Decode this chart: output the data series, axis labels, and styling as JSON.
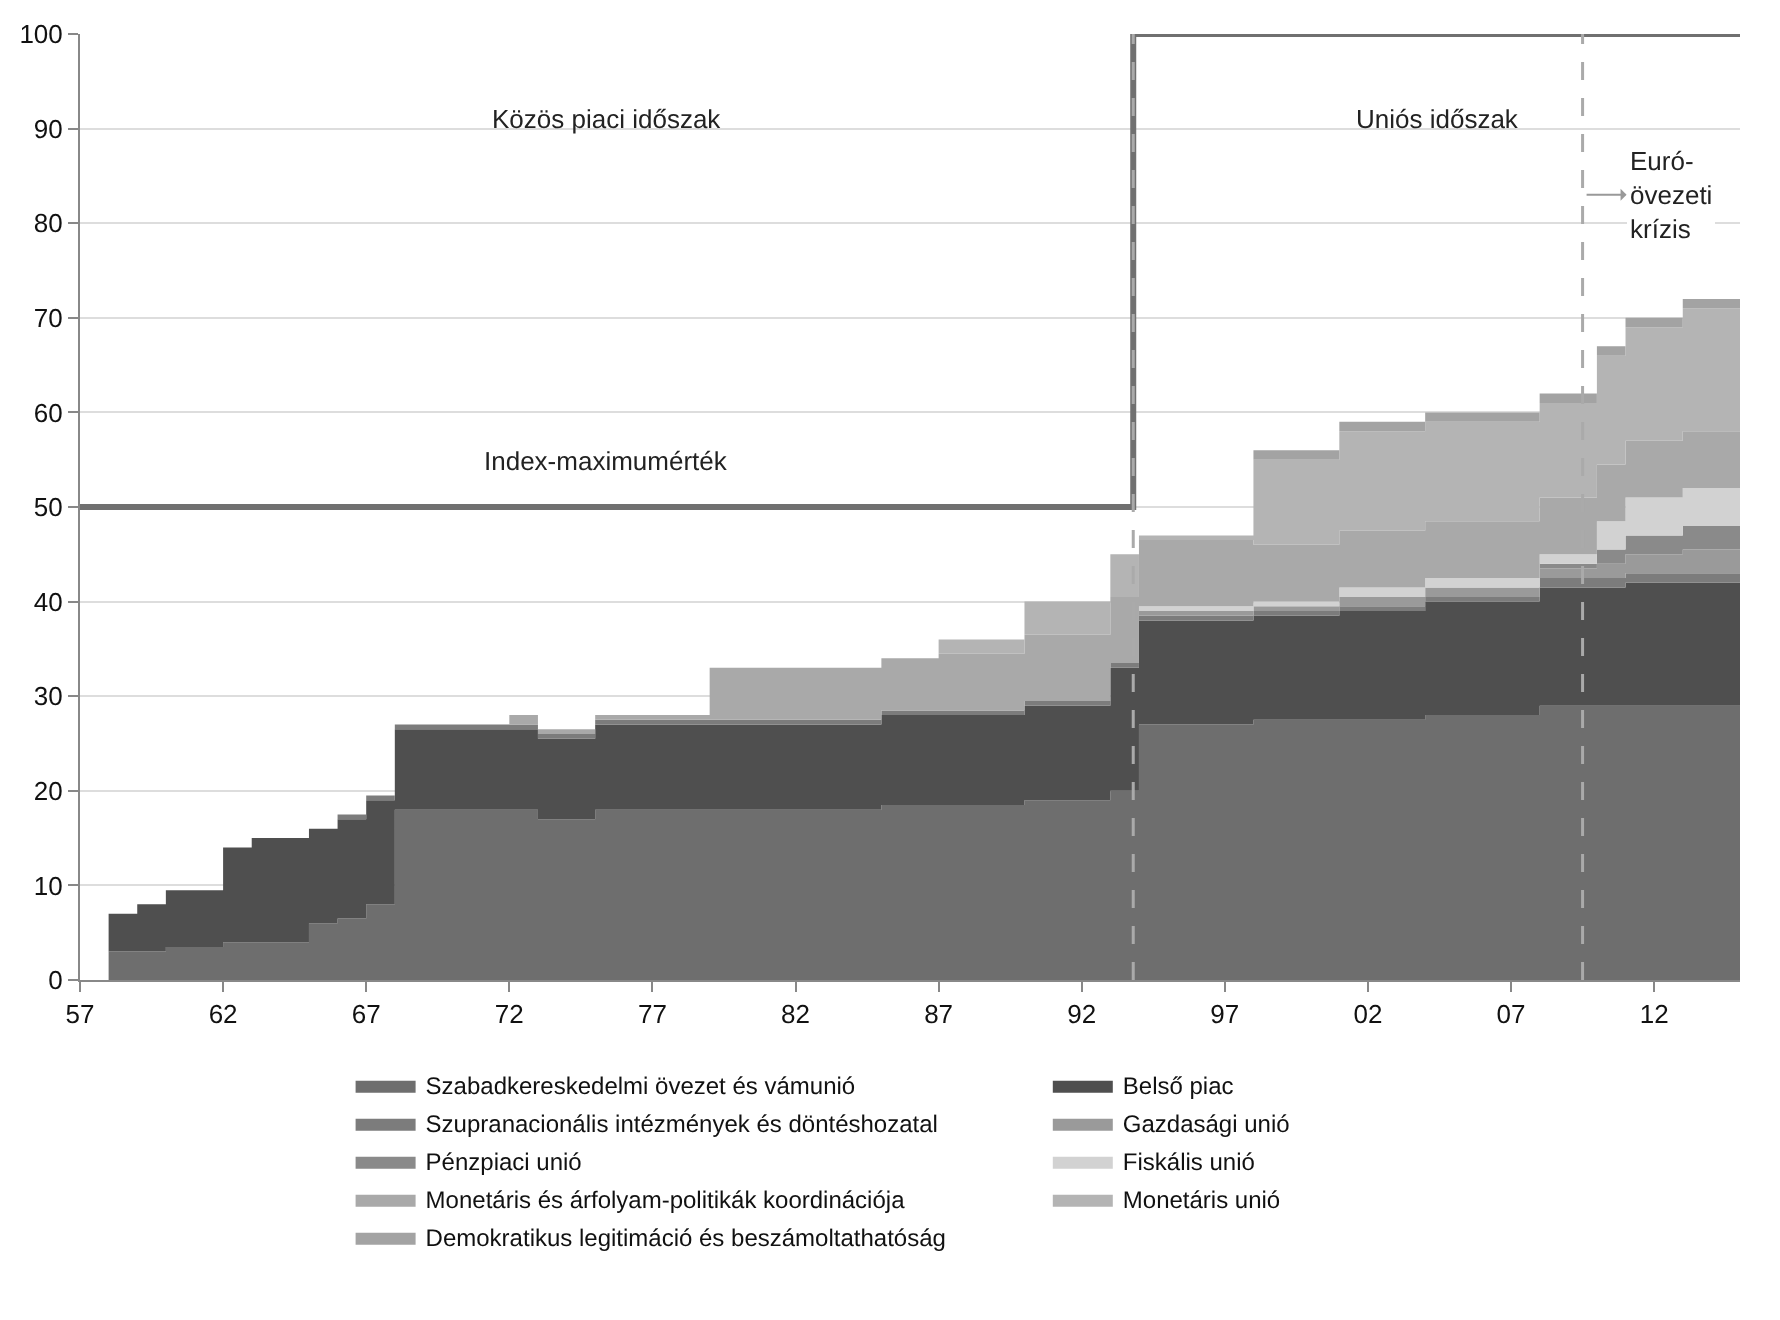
{
  "chart_data": {
    "type": "area",
    "stacked": true,
    "x": [
      1958,
      1959,
      1960,
      1962,
      1963,
      1965,
      1966,
      1967,
      1968,
      1972,
      1973,
      1975,
      1979,
      1985,
      1987,
      1990,
      1993,
      1994,
      1998,
      2001,
      2004,
      2008,
      2010,
      2011,
      2013,
      2015
    ],
    "series": [
      {
        "name": "Szabadkereskedelmi övezet és vámunió",
        "color": "#6e6e6e",
        "values": [
          3,
          3,
          3.5,
          4,
          4,
          6,
          6.5,
          8,
          18,
          18,
          17,
          18,
          18,
          18.5,
          18.5,
          19,
          20,
          27,
          27.5,
          27.5,
          28,
          29,
          29,
          29,
          29,
          29
        ]
      },
      {
        "name": "Belső piac",
        "color": "#4f4f4f",
        "values": [
          4,
          5,
          6,
          10,
          11,
          10,
          10.5,
          11,
          8.5,
          8.5,
          8.5,
          9,
          9,
          9.5,
          9.5,
          10,
          13,
          11,
          11,
          11.5,
          12,
          12.5,
          12.5,
          13,
          13,
          13
        ]
      },
      {
        "name": "Szupranacionális intézmények és döntéshozatal",
        "color": "#7c7c7c",
        "values": [
          0,
          0,
          0,
          0,
          0,
          0,
          0.5,
          0.5,
          0.5,
          0.5,
          0.5,
          0.5,
          0.5,
          0.5,
          0.5,
          0.5,
          0.5,
          0.5,
          0.5,
          0.5,
          0.5,
          1,
          1,
          1,
          1,
          1
        ]
      },
      {
        "name": "Gazdasági unió",
        "color": "#9a9a9a",
        "values": [
          0,
          0,
          0,
          0,
          0,
          0,
          0,
          0,
          0,
          0,
          0,
          0,
          0,
          0,
          0,
          0,
          0,
          0.5,
          0.5,
          1,
          1,
          1,
          1.5,
          2,
          2.5,
          3
        ]
      },
      {
        "name": "Pénzpiaci unió",
        "color": "#8a8a8a",
        "values": [
          0,
          0,
          0,
          0,
          0,
          0,
          0,
          0,
          0,
          0,
          0,
          0,
          0,
          0,
          0,
          0,
          0,
          0,
          0,
          0,
          0,
          0.5,
          1.5,
          2,
          2.5,
          3
        ]
      },
      {
        "name": "Fiskális unió",
        "color": "#d2d2d2",
        "values": [
          0,
          0,
          0,
          0,
          0,
          0,
          0,
          0,
          0,
          0,
          0,
          0,
          0,
          0,
          0,
          0,
          0,
          0.5,
          0.5,
          1,
          1,
          1,
          3,
          4,
          4,
          5
        ]
      },
      {
        "name": "Monetáris és árfolyam-politikák koordinációja",
        "color": "#a9a9a9",
        "values": [
          0,
          0,
          0,
          0,
          0,
          0,
          0,
          0,
          0,
          1,
          0.5,
          0.5,
          5.5,
          5.5,
          6,
          7,
          7,
          7,
          6,
          6,
          6,
          6,
          6,
          6,
          6,
          6
        ]
      },
      {
        "name": "Monetáris unió",
        "color": "#b4b4b4",
        "values": [
          0,
          0,
          0,
          0,
          0,
          0,
          0,
          0,
          0,
          0,
          0,
          0,
          0,
          0,
          1.5,
          3.5,
          4.5,
          0.5,
          9,
          10.5,
          10.5,
          10,
          11.5,
          12,
          13,
          15
        ]
      },
      {
        "name": "Demokratikus legitimáció és beszámoltathatóság",
        "color": "#a3a3a3",
        "values": [
          0,
          0,
          0,
          0,
          0,
          0,
          0,
          0,
          0,
          0,
          0,
          0,
          0,
          0,
          0,
          0,
          0,
          0,
          1,
          1,
          1,
          1,
          1,
          1,
          1,
          1
        ]
      },
      {
        "name": "Index-maximumérték",
        "type": "step",
        "color": "#707070",
        "x": [
          1957,
          1993.8,
          2015
        ],
        "values": [
          50,
          100,
          100
        ]
      }
    ],
    "ref_lines": [
      {
        "axis": "x",
        "value": 1993.8,
        "label": null,
        "color": "#aaaaaa",
        "line_style": "dashed"
      },
      {
        "axis": "x",
        "value": 2009.5,
        "label": "Euró-\növezeti\nkrízis",
        "color": "#aaaaaa",
        "line_style": "dashed"
      }
    ],
    "annotations": [
      "Közös piaci időszak",
      "Uniós időszak"
    ],
    "xlim": [
      1957,
      2015
    ],
    "xticks": [
      {
        "value": 1957,
        "label": "57"
      },
      {
        "value": 1962,
        "label": "62"
      },
      {
        "value": 1967,
        "label": "67"
      },
      {
        "value": 1972,
        "label": "72"
      },
      {
        "value": 1977,
        "label": "77"
      },
      {
        "value": 1982,
        "label": "82"
      },
      {
        "value": 1987,
        "label": "87"
      },
      {
        "value": 1992,
        "label": "92"
      },
      {
        "value": 1997,
        "label": "97"
      },
      {
        "value": 2002,
        "label": "02"
      },
      {
        "value": 2007,
        "label": "07"
      },
      {
        "value": 2012,
        "label": "12"
      }
    ],
    "ylim": [
      0,
      100
    ],
    "yticks": [
      0,
      10,
      20,
      30,
      40,
      50,
      60,
      70,
      80,
      90,
      100
    ],
    "grid": "y",
    "legend": "bottom"
  }
}
